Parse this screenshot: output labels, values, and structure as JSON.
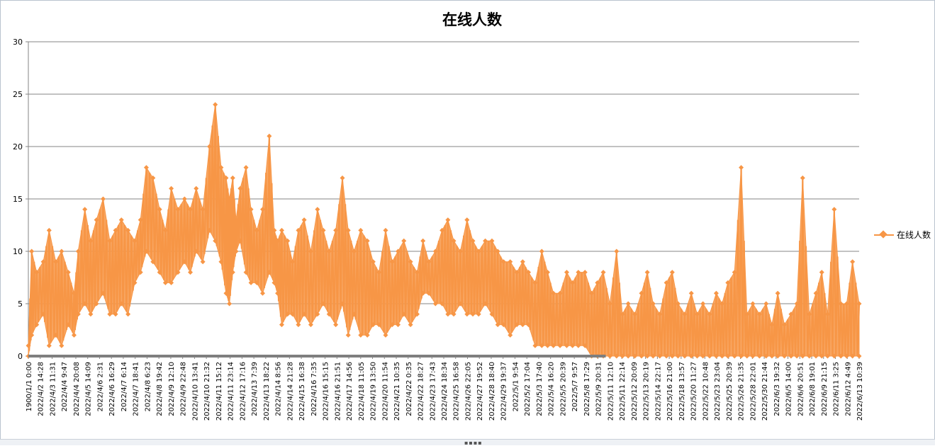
{
  "chart_data": {
    "type": "line",
    "title": "在线人数",
    "xlabel": "",
    "ylabel": "",
    "ylim": [
      0,
      30
    ],
    "yticks": [
      0,
      5,
      10,
      15,
      20,
      25,
      30
    ],
    "grid": true,
    "legend_position": "right",
    "colors": {
      "series": "#f79646",
      "grid": "#868686",
      "axis": "#868686"
    },
    "series": [
      {
        "name": "在线人数",
        "envelope": {
          "x_fraction": [
            0.0,
            0.004,
            0.01,
            0.018,
            0.025,
            0.033,
            0.04,
            0.048,
            0.055,
            0.06,
            0.068,
            0.075,
            0.082,
            0.09,
            0.098,
            0.105,
            0.112,
            0.12,
            0.128,
            0.135,
            0.142,
            0.15,
            0.158,
            0.165,
            0.172,
            0.18,
            0.188,
            0.195,
            0.202,
            0.21,
            0.218,
            0.225,
            0.232,
            0.238,
            0.242,
            0.246,
            0.25,
            0.255,
            0.262,
            0.268,
            0.275,
            0.282,
            0.29,
            0.296,
            0.3,
            0.305,
            0.312,
            0.318,
            0.325,
            0.332,
            0.34,
            0.348,
            0.355,
            0.362,
            0.37,
            0.378,
            0.385,
            0.392,
            0.4,
            0.408,
            0.415,
            0.422,
            0.43,
            0.438,
            0.445,
            0.452,
            0.46,
            0.468,
            0.475,
            0.482,
            0.49,
            0.498,
            0.505,
            0.512,
            0.52,
            0.528,
            0.535,
            0.542,
            0.55,
            0.558,
            0.565,
            0.572,
            0.58,
            0.588,
            0.595,
            0.602,
            0.61,
            0.618,
            0.625,
            0.632,
            0.64,
            0.648,
            0.655,
            0.662,
            0.67,
            0.678,
            0.685,
            0.692,
            0.7,
            0.708,
            0.715,
            0.722,
            0.73,
            0.738,
            0.745,
            0.752,
            0.76,
            0.768,
            0.775,
            0.782,
            0.79,
            0.798,
            0.805,
            0.812,
            0.82,
            0.828,
            0.835,
            0.842,
            0.85,
            0.858,
            0.865,
            0.872,
            0.88,
            0.888,
            0.895,
            0.902,
            0.91,
            0.918,
            0.925,
            0.932,
            0.94,
            0.948,
            0.955,
            0.962,
            0.97,
            0.978,
            0.985,
            0.992,
            1.0
          ],
          "max": [
            1,
            10,
            8,
            9,
            12,
            9,
            10,
            8,
            6,
            10,
            14,
            11,
            13,
            15,
            11,
            12,
            13,
            12,
            11,
            13,
            18,
            17,
            14,
            12,
            16,
            14,
            15,
            14,
            16,
            14,
            20,
            24,
            18,
            17,
            15,
            17,
            13,
            16,
            18,
            14,
            12,
            14,
            21,
            12,
            11,
            12,
            11,
            9,
            12,
            13,
            10,
            14,
            12,
            10,
            12,
            17,
            12,
            10,
            12,
            11,
            9,
            8,
            12,
            9,
            10,
            11,
            9,
            8,
            11,
            9,
            10,
            12,
            13,
            11,
            10,
            13,
            11,
            10,
            11,
            11,
            10,
            9,
            9,
            8,
            9,
            8,
            7,
            10,
            8,
            6,
            6,
            8,
            7,
            8,
            8,
            6,
            7,
            8,
            5,
            10,
            4,
            5,
            4,
            6,
            8,
            5,
            4,
            7,
            8,
            5,
            4,
            6,
            4,
            5,
            4,
            6,
            5,
            7,
            8,
            18,
            4,
            5,
            4,
            5,
            3,
            6,
            3,
            4,
            5,
            17,
            4,
            6,
            8,
            4,
            14,
            5,
            5,
            9,
            5,
            8,
            5
          ],
          "min": [
            0,
            2,
            3,
            4,
            1,
            2,
            1,
            3,
            2,
            4,
            5,
            4,
            5,
            6,
            4,
            4,
            5,
            4,
            7,
            8,
            10,
            9,
            8,
            7,
            7,
            8,
            9,
            8,
            10,
            9,
            12,
            11,
            9,
            6,
            5,
            8,
            10,
            11,
            8,
            7,
            7,
            6,
            8,
            7,
            6,
            3,
            4,
            4,
            3,
            4,
            3,
            4,
            5,
            4,
            3,
            5,
            2,
            4,
            2,
            2,
            3,
            3,
            2,
            3,
            3,
            4,
            3,
            4,
            6,
            6,
            5,
            5,
            4,
            4,
            5,
            4,
            4,
            4,
            5,
            4,
            3,
            3,
            2,
            3,
            3,
            3,
            1,
            1,
            1,
            1,
            1,
            1,
            1,
            1,
            1,
            0,
            0,
            0,
            0,
            0,
            0,
            0,
            0,
            0,
            0,
            0,
            0,
            0,
            0,
            0,
            0,
            0,
            0,
            0,
            0,
            0,
            0,
            0,
            0,
            0,
            0,
            0,
            0,
            0,
            0,
            0,
            0,
            0,
            0,
            0,
            0,
            0,
            0,
            0,
            0,
            0,
            0,
            0,
            0,
            0,
            0
          ]
        }
      }
    ],
    "categories": [
      "1900/1/1 0:00",
      "2022/4/2 14:28",
      "2022/4/3 11:31",
      "2022/4/4 9:47",
      "2022/4/4 20:08",
      "2022/4/5 14:09",
      "2022/4/6 2:31",
      "2022/4/6 16:29",
      "2022/4/7 6:14",
      "2022/4/7 18:41",
      "2022/4/8 6:23",
      "2022/4/8 19:42",
      "2022/4/9 12:10",
      "2022/4/9 22:48",
      "2022/4/10 13:41",
      "2022/4/10 21:32",
      "2022/4/11 15:12",
      "2022/4/11 23:14",
      "2022/4/12 17:16",
      "2022/4/13 7:39",
      "2022/4/13 18:22",
      "2022/4/14 8:56",
      "2022/4/14 21:28",
      "2022/4/15 16:38",
      "2022/4/16 7:35",
      "2022/4/16 15:15",
      "2022/4/16 21:51",
      "2022/4/17 14:56",
      "2022/4/18 11:05",
      "2022/4/19 13:50",
      "2022/4/20 11:54",
      "2022/4/21 10:35",
      "2022/4/22 0:35",
      "2022/4/22 18:27",
      "2022/4/23 17:43",
      "2022/4/24 18:34",
      "2022/4/25 16:58",
      "2022/4/26 22:05",
      "2022/4/27 19:52",
      "2022/4/28 18:40",
      "2022/4/29 19:37",
      "2022/5/1 9:54",
      "2022/5/2 17:04",
      "2022/5/3 17:40",
      "2022/5/4 16:20",
      "2022/5/5 20:39",
      "2022/5/7 9:57",
      "2022/5/8 17:29",
      "2022/5/9 20:31",
      "2022/5/11 12:10",
      "2022/5/11 22:14",
      "2022/5/12 20:09",
      "2022/5/13 20:19",
      "2022/5/14 22:17",
      "2022/5/16 21:00",
      "2022/5/18 13:57",
      "2022/5/20 11:27",
      "2022/5/22 10:48",
      "2022/5/23 23:04",
      "2022/5/25 20:39",
      "2022/5/26 21:35",
      "2022/5/28 22:01",
      "2022/5/30 21:44",
      "2022/6/3 19:32",
      "2022/6/5 14:00",
      "2022/6/6 20:51",
      "2022/6/8 19:01",
      "2022/6/9 21:15",
      "2022/6/11 3:25",
      "2022/6/12 4:49",
      "2022/6/13 10:39"
    ]
  }
}
